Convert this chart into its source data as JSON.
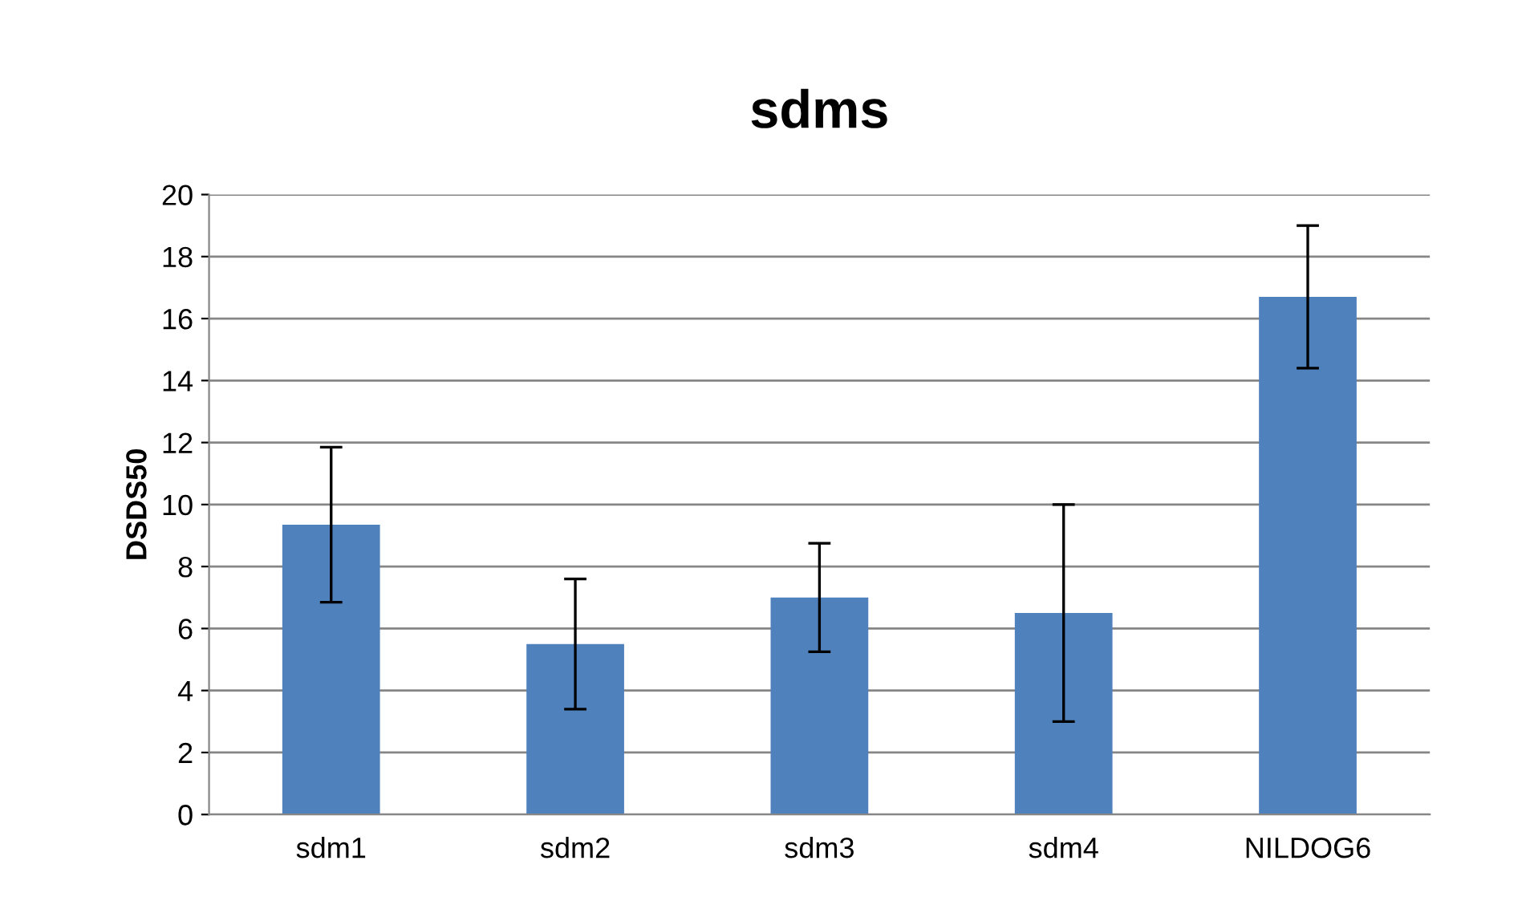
{
  "chart_data": {
    "type": "bar",
    "title": "sdms",
    "ylabel": "DSDS50",
    "categories": [
      "sdm1",
      "sdm2",
      "sdm3",
      "sdm4",
      "NILDOG6"
    ],
    "values": [
      9.35,
      5.5,
      7.0,
      6.5,
      16.7
    ],
    "errors": [
      2.5,
      2.1,
      1.75,
      3.5,
      2.3
    ],
    "color": "#4f81bd",
    "ylim": [
      0,
      20
    ],
    "yticks": [
      0,
      2,
      4,
      6,
      8,
      10,
      12,
      14,
      16,
      18,
      20
    ],
    "grid": "y",
    "legend": false
  }
}
